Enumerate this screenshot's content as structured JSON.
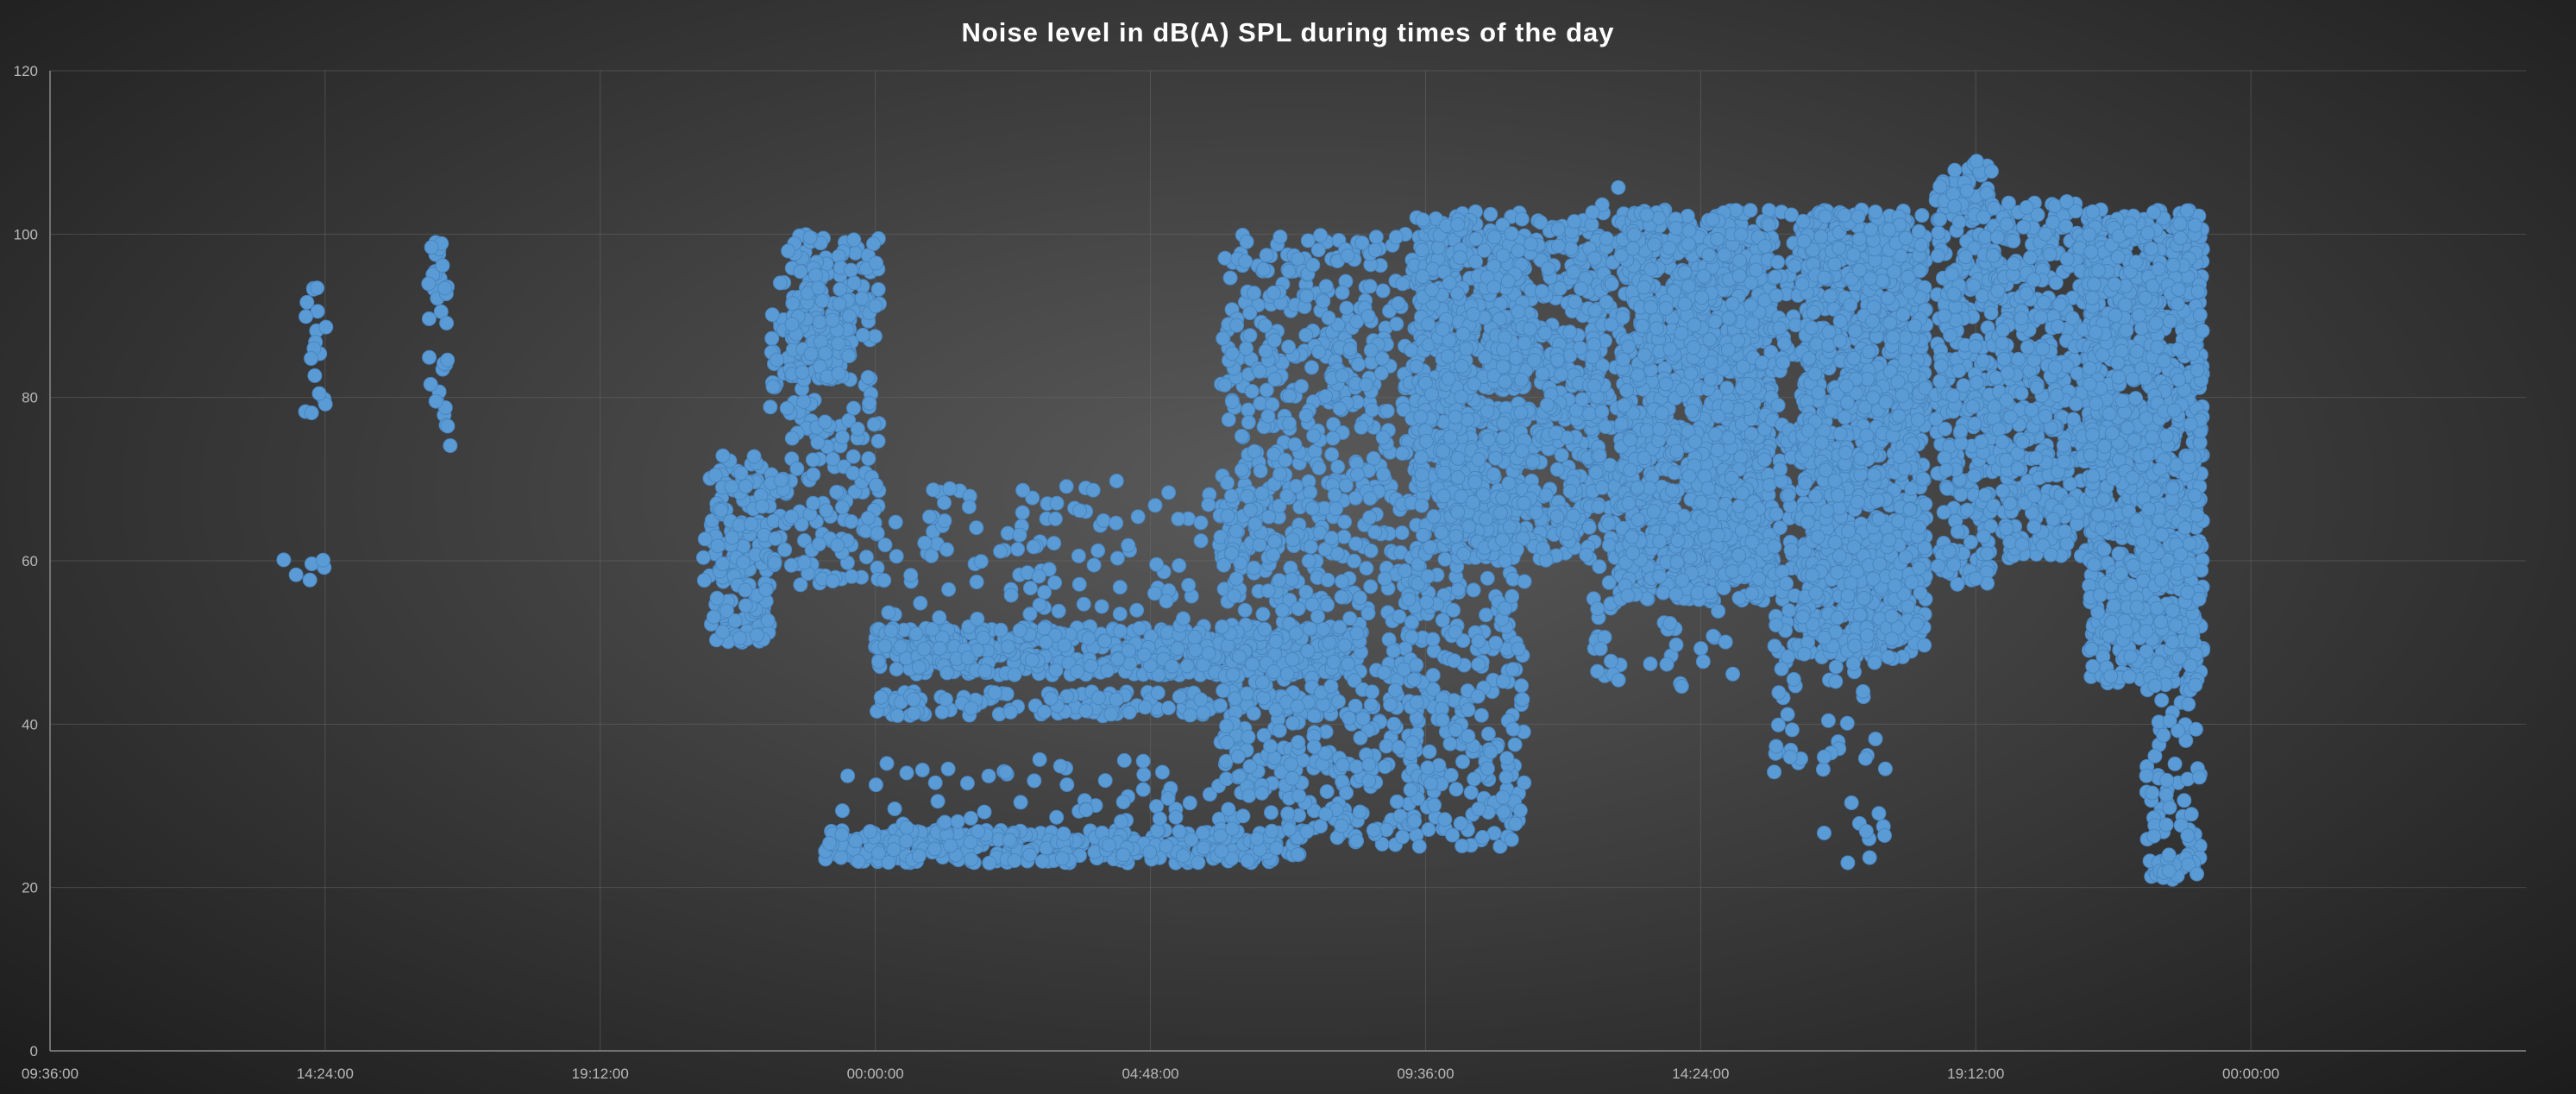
{
  "chart_data": {
    "type": "scatter",
    "title": "Noise level in dB(A) SPL during times of the day",
    "xlabel": "",
    "ylabel": "",
    "x_ticks": [
      "09:36:00",
      "14:24:00",
      "19:12:00",
      "00:00:00",
      "04:48:00",
      "09:36:00",
      "14:24:00",
      "19:12:00",
      "00:00:00"
    ],
    "xlim": [
      "day1 09:36:00",
      "day3 04:48:00"
    ],
    "y_ticks": [
      0,
      20,
      40,
      60,
      80,
      100,
      120
    ],
    "ylim": [
      0,
      120
    ],
    "grid": true,
    "legend": "none",
    "marker_color": "#5b9bd5",
    "series": [
      {
        "clusters": [
          {
            "x_start": "day1 14:03",
            "x_end": "day1 14:25",
            "y_min": 78,
            "y_max": 94,
            "density": "medium"
          },
          {
            "x_start": "day1 13:40",
            "x_end": "day1 14:25",
            "y_min": 57,
            "y_max": 61,
            "density": "low"
          },
          {
            "x_start": "day1 16:10",
            "x_end": "day1 16:35",
            "y_min": 74,
            "y_max": 101,
            "density": "medium"
          },
          {
            "x_start": "day1 21:00",
            "x_end": "day1 22:10",
            "y_min": 50,
            "y_max": 73,
            "density": "high"
          },
          {
            "x_start": "day1 22:10",
            "x_end": "day2 00:05",
            "y_min": 57,
            "y_max": 100,
            "density": "medium"
          },
          {
            "x_start": "day1 22:30",
            "x_end": "day1 23:35",
            "y_min": 82,
            "y_max": 96,
            "density": "high"
          },
          {
            "x_start": "day1 23:05",
            "x_end": "day2 07:30",
            "y_min": 23,
            "y_max": 27,
            "density": "very-high"
          },
          {
            "x_start": "day1 23:20",
            "x_end": "day2 09:00",
            "y_min": 27,
            "y_max": 36,
            "density": "low"
          },
          {
            "x_start": "day2 00:00",
            "x_end": "day2 08:30",
            "y_min": 46,
            "y_max": 52,
            "density": "very-high"
          },
          {
            "x_start": "day2 00:00",
            "x_end": "day2 08:00",
            "y_min": 41,
            "y_max": 44,
            "density": "high"
          },
          {
            "x_start": "day2 00:00",
            "x_end": "day2 08:00",
            "y_min": 52,
            "y_max": 70,
            "density": "low"
          },
          {
            "x_start": "day2 06:00",
            "x_end": "day2 09:30",
            "y_min": 25,
            "y_max": 100,
            "density": "medium"
          },
          {
            "x_start": "day2 09:20",
            "x_end": "day2 11:20",
            "y_min": 25,
            "y_max": 103,
            "density": "medium"
          },
          {
            "x_start": "day2 09:30",
            "x_end": "day2 12:40",
            "y_min": 60,
            "y_max": 102,
            "density": "high"
          },
          {
            "x_start": "day2 12:30",
            "x_end": "day2 13:00",
            "y_min": 45,
            "y_max": 107,
            "density": "medium"
          },
          {
            "x_start": "day2 13:00",
            "x_end": "day2 15:40",
            "y_min": 55,
            "y_max": 103,
            "density": "very-high"
          },
          {
            "x_start": "day2 13:30",
            "x_end": "day2 15:00",
            "y_min": 44,
            "y_max": 55,
            "density": "low"
          },
          {
            "x_start": "day2 15:40",
            "x_end": "day2 16:10",
            "y_min": 32,
            "y_max": 103,
            "density": "medium"
          },
          {
            "x_start": "day2 16:10",
            "x_end": "day2 18:20",
            "y_min": 48,
            "y_max": 103,
            "density": "very-high"
          },
          {
            "x_start": "day2 16:30",
            "x_end": "day2 17:40",
            "y_min": 23,
            "y_max": 48,
            "density": "low"
          },
          {
            "x_start": "day2 18:30",
            "x_end": "day2 19:30",
            "y_min": 57,
            "y_max": 109,
            "density": "high"
          },
          {
            "x_start": "day2 19:30",
            "x_end": "day2 21:20",
            "y_min": 60,
            "y_max": 104,
            "density": "high"
          },
          {
            "x_start": "day2 21:10",
            "x_end": "day2 23:10",
            "y_min": 45,
            "y_max": 103,
            "density": "very-high"
          },
          {
            "x_start": "day2 22:10",
            "x_end": "day2 23:10",
            "y_min": 21,
            "y_max": 45,
            "density": "medium"
          },
          {
            "x_start": "day2 22:20",
            "x_end": "day2 23:10",
            "y_min": 21,
            "y_max": 24,
            "density": "high"
          }
        ]
      }
    ]
  }
}
